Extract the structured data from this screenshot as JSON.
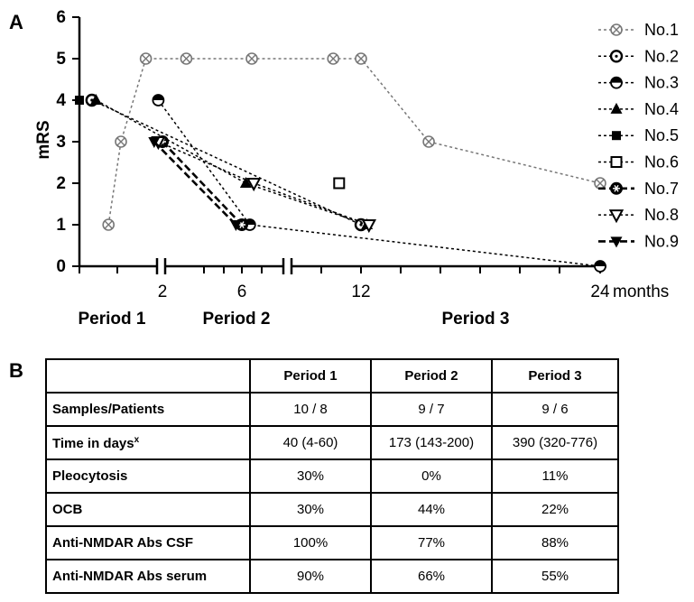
{
  "panel_a_label": "A",
  "panel_b_label": "B",
  "chart_data": {
    "type": "line",
    "ylabel": "mRS",
    "ylim": [
      0,
      6
    ],
    "y_ticks": [
      "0",
      "1",
      "2",
      "3",
      "4",
      "5",
      "6"
    ],
    "x_tick_labels": [
      "2",
      "6",
      "12",
      "24"
    ],
    "x_unit": "months",
    "periods": [
      "Period 1",
      "Period 2",
      "Period 3"
    ],
    "legend_position": "right",
    "series": [
      {
        "name": "No.1",
        "marker": "circle-x",
        "style": "dotted",
        "color": "#777777",
        "points": [
          [
            0.7,
            1
          ],
          [
            1.0,
            3
          ],
          [
            1.6,
            5
          ],
          [
            3.2,
            5
          ],
          [
            6.5,
            5
          ],
          [
            10.6,
            5
          ],
          [
            12.0,
            5
          ],
          [
            15.4,
            3
          ],
          [
            24.0,
            2
          ]
        ]
      },
      {
        "name": "No.2",
        "marker": "circle-dot",
        "style": "dotted",
        "color": "#000000",
        "points": [
          [
            0.3,
            4
          ],
          [
            12.0,
            1
          ]
        ]
      },
      {
        "name": "No.3",
        "marker": "half-circle",
        "style": "dotted",
        "color": "#000000",
        "points": [
          [
            1.9,
            4
          ],
          [
            6.4,
            1
          ],
          [
            24.0,
            0
          ]
        ]
      },
      {
        "name": "No.4",
        "marker": "triangle",
        "style": "dotted",
        "color": "#000000",
        "points": [
          [
            0.4,
            4
          ],
          [
            6.2,
            2
          ],
          [
            12.3,
            1
          ]
        ]
      },
      {
        "name": "No.5",
        "marker": "square",
        "style": "dotted",
        "color": "#000000",
        "points": [
          [
            0.0,
            4
          ]
        ]
      },
      {
        "name": "No.6",
        "marker": "square-open",
        "style": "dotted",
        "color": "#000000",
        "points": [
          [
            10.9,
            2
          ]
        ]
      },
      {
        "name": "No.7",
        "marker": "hex-star",
        "style": "dashed",
        "color": "#000000",
        "points": [
          [
            2.0,
            3
          ],
          [
            6.0,
            1
          ]
        ]
      },
      {
        "name": "No.8",
        "marker": "triangle-down-open",
        "style": "dotted",
        "color": "#000000",
        "points": [
          [
            1.9,
            3
          ],
          [
            6.6,
            2
          ],
          [
            12.4,
            1
          ]
        ]
      },
      {
        "name": "No.9",
        "marker": "triangle-down",
        "style": "dashed",
        "color": "#000000",
        "points": [
          [
            1.8,
            3
          ],
          [
            5.7,
            1
          ]
        ]
      }
    ]
  },
  "table": {
    "headers": [
      "",
      "Period 1",
      "Period 2",
      "Period 3"
    ],
    "rows": [
      {
        "label": "Samples/Patients",
        "sup": "",
        "values": [
          "10 / 8",
          "9 / 7",
          "9 / 6"
        ]
      },
      {
        "label": "Time in days",
        "sup": "x",
        "values": [
          "40 (4-60)",
          "173 (143-200)",
          "390 (320-776)"
        ]
      },
      {
        "label": "Pleocytosis",
        "sup": "",
        "values": [
          "30%",
          "0%",
          "11%"
        ]
      },
      {
        "label": "OCB",
        "sup": "",
        "values": [
          "30%",
          "44%",
          "22%"
        ]
      },
      {
        "label": "Anti-NMDAR Abs CSF",
        "sup": "",
        "values": [
          "100%",
          "77%",
          "88%"
        ]
      },
      {
        "label": "Anti-NMDAR Abs serum",
        "sup": "",
        "values": [
          "90%",
          "66%",
          "55%"
        ]
      }
    ]
  }
}
